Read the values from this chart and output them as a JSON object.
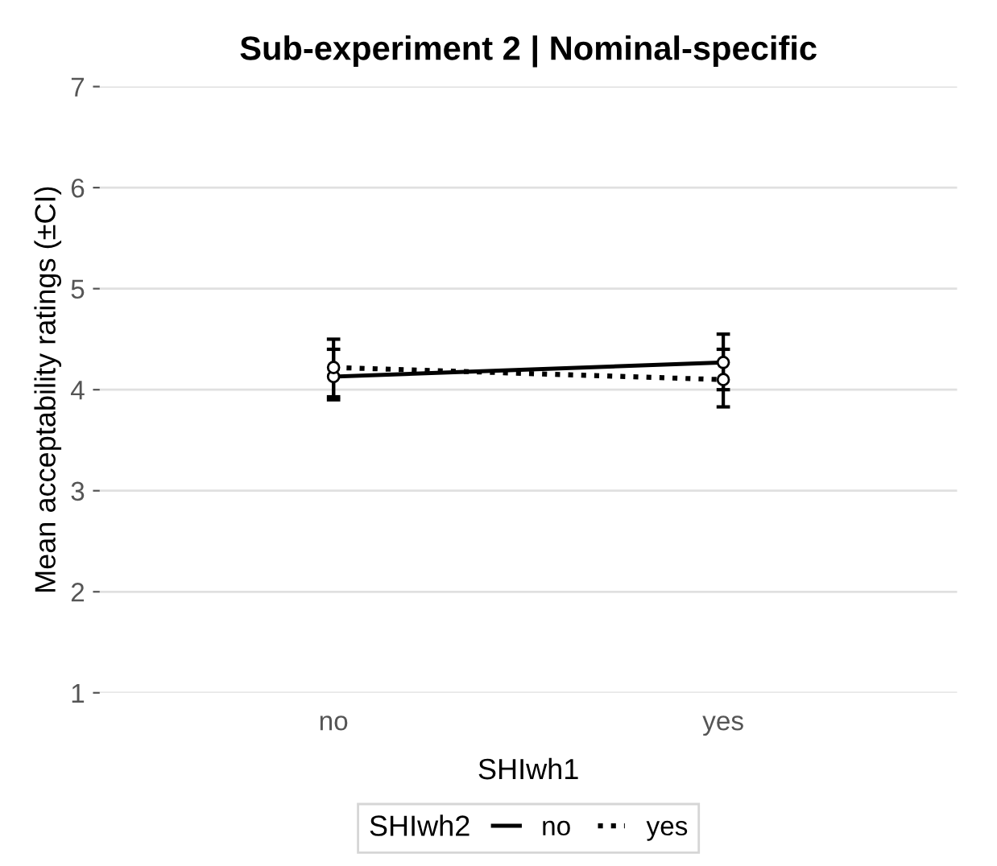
{
  "chart_data": {
    "type": "line",
    "title": "Sub-experiment 2 | Nominal-specific",
    "xlabel": "SHIwh1",
    "ylabel": "Mean acceptability ratings (±CI)",
    "legend_title": "SHIwh2",
    "categories": [
      "no",
      "yes"
    ],
    "series": [
      {
        "name": "no",
        "color": "#000000",
        "values": [
          4.13,
          4.27
        ],
        "errors": [
          [
            3.9,
            4.4
          ],
          [
            4.0,
            4.55
          ]
        ],
        "line_style": "solid"
      },
      {
        "name": "yes",
        "color": "#000000",
        "values": [
          4.22,
          4.1
        ],
        "errors": [
          [
            3.93,
            4.5
          ],
          [
            3.83,
            4.4
          ]
        ],
        "line_style": "dotted"
      }
    ],
    "ylim": [
      1,
      7
    ],
    "yticks": [
      1,
      2,
      3,
      4,
      5,
      6,
      7
    ],
    "grid": "y",
    "legend": "bottom",
    "marker": "circle"
  }
}
